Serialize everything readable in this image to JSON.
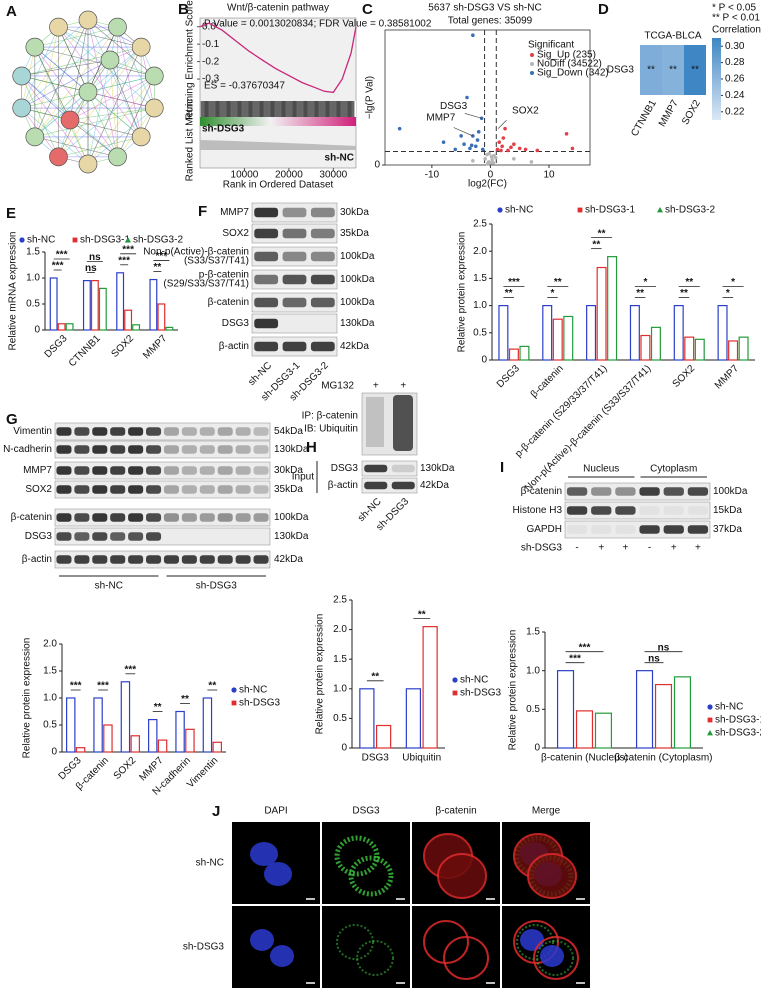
{
  "panel_labels": [
    "A",
    "B",
    "C",
    "D",
    "E",
    "F",
    "G",
    "H",
    "I",
    "J"
  ],
  "chart_data": [
    {
      "type": "line",
      "title": "Wnt/β-catenin pathway",
      "stats": "P Value = 0.0013020834; FDR Value = 0.38581002",
      "es_label": "ES = -0.37670347",
      "ylabel": "Running Enrichment Score",
      "ylabel2": "Ranked List Metric",
      "xlabel": "Rank in Ordered Dataset",
      "left_label": "sh-DSG3",
      "right_label": "sh-NC",
      "color": "#c8267a",
      "x": [
        0,
        2000,
        5000,
        8000,
        11000,
        14000,
        17000,
        20000,
        23000,
        26000,
        28000,
        30000,
        32000,
        34000,
        35099
      ],
      "values": [
        0,
        0.02,
        -0.02,
        -0.08,
        -0.14,
        -0.19,
        -0.24,
        -0.28,
        -0.32,
        -0.35,
        -0.37,
        -0.3767,
        -0.3,
        -0.15,
        0
      ],
      "xlim": [
        0,
        35099
      ],
      "xticks": [
        10000,
        20000,
        30000
      ],
      "ylim": [
        -0.42,
        0.05
      ],
      "yticks": [
        {
          "value": 0,
          "label": "0.0"
        },
        -0.1,
        -0.2,
        -0.3
      ]
    },
    {
      "type": "scatter",
      "title": "5637 sh-DSG3 VS sh-NC",
      "subtitle": "Total genes: 35099",
      "xlabel": "log2(FC)",
      "ylabel": "−lg(P Val)",
      "legend_title": "Significant",
      "xlim": [
        -18,
        17
      ],
      "ylim": [
        0,
        13
      ],
      "xticks": [
        -10,
        0,
        10
      ],
      "yticks": [
        0
      ],
      "vlines": [
        -1,
        1
      ],
      "hline": 1.3,
      "series": [
        {
          "name": "Sig_Up (235)",
          "color": "#e0404a",
          "x": [
            1.2,
            1.5,
            2,
            2.5,
            3,
            4,
            5,
            6,
            8,
            13,
            14,
            1.8,
            2.2,
            3.5
          ],
          "values": [
            1.5,
            2.2,
            1.8,
            3.5,
            1.4,
            2,
            1.6,
            1.5,
            1.4,
            3,
            1.6,
            1.4,
            2.6,
            1.7
          ]
        },
        {
          "name": "NoDiff (34522)",
          "color": "#b5b5b5",
          "x": [
            -0.9,
            -0.6,
            -0.3,
            0,
            0.3,
            0.6,
            0.9,
            -0.5,
            0.5,
            -0.2,
            0.2,
            -3,
            4,
            7
          ],
          "values": [
            0.6,
            1.0,
            0.3,
            0.2,
            0.5,
            0.9,
            0.7,
            0.1,
            0.2,
            1.1,
            0.8,
            0.4,
            0.6,
            0.3
          ]
        },
        {
          "name": "Sig_Down (342)",
          "color": "#3a6fb5",
          "x": [
            -15.5,
            -8,
            -6,
            -5,
            -4,
            -3.5,
            -3,
            -2.5,
            -2,
            -1.5,
            -1.3,
            -4.5,
            -2.2,
            -3.2,
            -3
          ],
          "values": [
            3.5,
            2.2,
            1.5,
            2.8,
            6.5,
            1.6,
            2.8,
            1.8,
            3.2,
            4.5,
            1.5,
            2.0,
            2.4,
            1.9,
            12.5
          ]
        }
      ],
      "annotations": [
        {
          "text": "DSG3",
          "x": -1.5,
          "y": 4.5
        },
        {
          "text": "SOX2",
          "x": 1.3,
          "y": 3.5
        },
        {
          "text": "MMP7",
          "x": -3,
          "y": 2.8
        }
      ]
    },
    {
      "type": "heatmap",
      "title": "TCGA-BLCA",
      "rows": [
        "DSG3"
      ],
      "columns": [
        "CTNNB1",
        "MMP7",
        "SOX2"
      ],
      "values": [
        [
          0.27,
          0.265,
          0.31
        ]
      ],
      "cell_labels": [
        [
          "**",
          "**",
          "**"
        ]
      ],
      "clim": [
        0.21,
        0.31
      ],
      "cticks": [
        0.22,
        0.24,
        0.26,
        0.28,
        {
          "value": 0.3,
          "label": "0.30"
        }
      ],
      "colorbar_title": "Correlation",
      "notes": [
        "* P < 0.05",
        "** P < 0.01"
      ]
    },
    {
      "type": "bar",
      "ylabel": "Relative mRNA expression",
      "ylim": [
        0,
        1.5
      ],
      "yticks": [
        0,
        0.5,
        {
          "value": 1,
          "label": "1.0"
        },
        1.5
      ],
      "legend": "top",
      "categories": [
        "DSG3",
        "CTNNB1",
        "SOX2",
        "MMP7"
      ],
      "series": [
        {
          "name": "sh-NC",
          "color": "#2b3fc9",
          "values": [
            1,
            0.95,
            1.1,
            0.97
          ]
        },
        {
          "name": "sh-DSG3-1",
          "color": "#e02d2d",
          "values": [
            0.12,
            0.95,
            0.38,
            0.5
          ]
        },
        {
          "name": "sh-DSG3-2",
          "color": "#239b3a",
          "values": [
            0.12,
            0.8,
            0.1,
            0.05
          ]
        }
      ],
      "significance": [
        [
          "***",
          "***"
        ],
        [
          "ns",
          "ns"
        ],
        [
          "***",
          "***"
        ],
        [
          "**",
          "***"
        ]
      ]
    },
    {
      "type": "bar",
      "ylabel": "Relative protein expression",
      "ylim": [
        0,
        2.5
      ],
      "yticks": [
        0,
        0.5,
        {
          "value": 1,
          "label": "1.0"
        },
        1.5,
        {
          "value": 2,
          "label": "2.0"
        },
        2.5
      ],
      "legend": "top",
      "categories": [
        "DSG3",
        "β-catenin",
        "p-β-catenin (S29/33/37/T41)",
        "Non-p(Active)-β-catenin (S33/S37/T41)",
        "SOX2",
        "MMP7"
      ],
      "series": [
        {
          "name": "sh-NC",
          "color": "#2b3fc9",
          "values": [
            1,
            1,
            1,
            1,
            1,
            1
          ]
        },
        {
          "name": "sh-DSG3-1",
          "color": "#e02d2d",
          "values": [
            0.2,
            0.75,
            1.7,
            0.45,
            0.42,
            0.35
          ]
        },
        {
          "name": "sh-DSG3-2",
          "color": "#239b3a",
          "values": [
            0.25,
            0.8,
            1.9,
            0.6,
            0.38,
            0.42
          ]
        }
      ],
      "significance": [
        [
          "**",
          "***"
        ],
        [
          "*",
          "**"
        ],
        [
          "**",
          "**"
        ],
        [
          "**",
          "*"
        ],
        [
          "**",
          "**"
        ],
        [
          "*",
          "*"
        ]
      ]
    },
    {
      "type": "bar",
      "ylabel": "Relative  protein expression",
      "ylim": [
        0,
        2
      ],
      "yticks": [
        0,
        0.5,
        {
          "value": 1,
          "label": "1.0"
        },
        1.5,
        {
          "value": 2,
          "label": "2.0"
        }
      ],
      "legend": "right",
      "categories": [
        "DSG3",
        "β-catenin",
        "SOX2",
        "MMP7",
        "N-cadherin",
        "Vimentin"
      ],
      "series": [
        {
          "name": "sh-NC",
          "color": "#2b3fc9",
          "values": [
            1,
            1,
            1.3,
            0.6,
            0.75,
            1
          ]
        },
        {
          "name": "sh-DSG3",
          "color": "#e02d2d",
          "values": [
            0.08,
            0.5,
            0.3,
            0.22,
            0.42,
            0.18
          ]
        }
      ],
      "significance": [
        [
          "***"
        ],
        [
          "***"
        ],
        [
          "***"
        ],
        [
          "**"
        ],
        [
          "**"
        ],
        [
          "**"
        ]
      ]
    },
    {
      "type": "bar",
      "ylabel": "Relative  protein expression",
      "ylim": [
        0,
        2.5
      ],
      "yticks": [
        0,
        0.5,
        {
          "value": 1,
          "label": "1.0"
        },
        1.5,
        {
          "value": 2,
          "label": "2.0"
        },
        2.5
      ],
      "legend": "right",
      "categories": [
        "DSG3",
        "Ubiquitin"
      ],
      "series": [
        {
          "name": "sh-NC",
          "color": "#2b3fc9",
          "values": [
            1,
            1
          ]
        },
        {
          "name": "sh-DSG3",
          "color": "#e02d2d",
          "values": [
            0.38,
            2.05
          ]
        }
      ],
      "significance": [
        [
          "**"
        ],
        [
          "**"
        ]
      ]
    },
    {
      "type": "bar",
      "ylabel": "Relative  protein expression",
      "ylim": [
        0,
        1.5
      ],
      "yticks": [
        0,
        0.5,
        {
          "value": 1,
          "label": "1.0"
        },
        1.5
      ],
      "legend": "right",
      "categories": [
        "β-catenin (Nucleus)",
        "β-catenin (Cytoplasm)"
      ],
      "series": [
        {
          "name": "sh-NC",
          "color": "#2b3fc9",
          "values": [
            1,
            1
          ]
        },
        {
          "name": "sh-DSG3-1",
          "color": "#e02d2d",
          "values": [
            0.48,
            0.82
          ]
        },
        {
          "name": "sh-DSG3-2",
          "color": "#239b3a",
          "values": [
            0.45,
            0.92
          ]
        }
      ],
      "significance": [
        [
          "***",
          "***"
        ],
        [
          "ns",
          "ns"
        ]
      ]
    }
  ],
  "blot_f": {
    "bands": [
      {
        "protein": "MMP7",
        "size": "30kDa"
      },
      {
        "protein": "SOX2",
        "size": "35kDa"
      },
      {
        "protein": "Non-p(Active)-β-catenin",
        "site": "(S33/S37/T41)",
        "size": "100kDa"
      },
      {
        "protein": "p-β-catenin",
        "site": "(S29/S33/S37/T41)",
        "size": "100kDa"
      },
      {
        "protein": "β-catenin",
        "size": "100kDa"
      },
      {
        "protein": "DSG3",
        "size": "130kDa"
      },
      {
        "protein": "β-actin",
        "size": "42kDa"
      }
    ],
    "lanes": [
      "sh-NC",
      "sh-DSG3-1",
      "sh-DSG3-2"
    ]
  },
  "blot_g": {
    "bands": [
      {
        "protein": "Vimentin",
        "size": "54kDa"
      },
      {
        "protein": "N-cadherin",
        "size": "130kDa"
      },
      {
        "protein": "MMP7",
        "size": "30kDa"
      },
      {
        "protein": "SOX2",
        "size": "35kDa"
      },
      {
        "protein": "β-catenin",
        "size": "100kDa"
      },
      {
        "protein": "DSG3",
        "size": "130kDa"
      },
      {
        "protein": "β-actin",
        "size": "42kDa"
      }
    ],
    "groups": [
      "sh-NC",
      "sh-DSG3"
    ]
  },
  "blot_h": {
    "treatment": "MG132",
    "treatment_marks": [
      "+",
      "+"
    ],
    "ip": "IP: β-catenin",
    "ib": "IB: Ubiquitin",
    "input": "Input",
    "bands": [
      {
        "protein": "DSG3",
        "size": "130kDa"
      },
      {
        "protein": "β-actin",
        "size": "42kDa"
      }
    ],
    "lanes": [
      "sh-NC",
      "sh-DSG3"
    ]
  },
  "blot_i": {
    "fractions": [
      "Nucleus",
      "Cytoplasm"
    ],
    "bands": [
      {
        "protein": "β-catenin",
        "size": "100kDa"
      },
      {
        "protein": "Histone H3",
        "size": "15kDa"
      },
      {
        "protein": "GAPDH",
        "size": "37kDa"
      }
    ],
    "condition": "sh-DSG3",
    "lane_marks": [
      "-",
      "+",
      "+",
      "-",
      "+",
      "+"
    ]
  },
  "imaging": {
    "channels": [
      "DAPI",
      "DSG3",
      "β-catenin",
      "Merge"
    ],
    "rows": [
      "sh-NC",
      "sh-DSG3"
    ]
  }
}
